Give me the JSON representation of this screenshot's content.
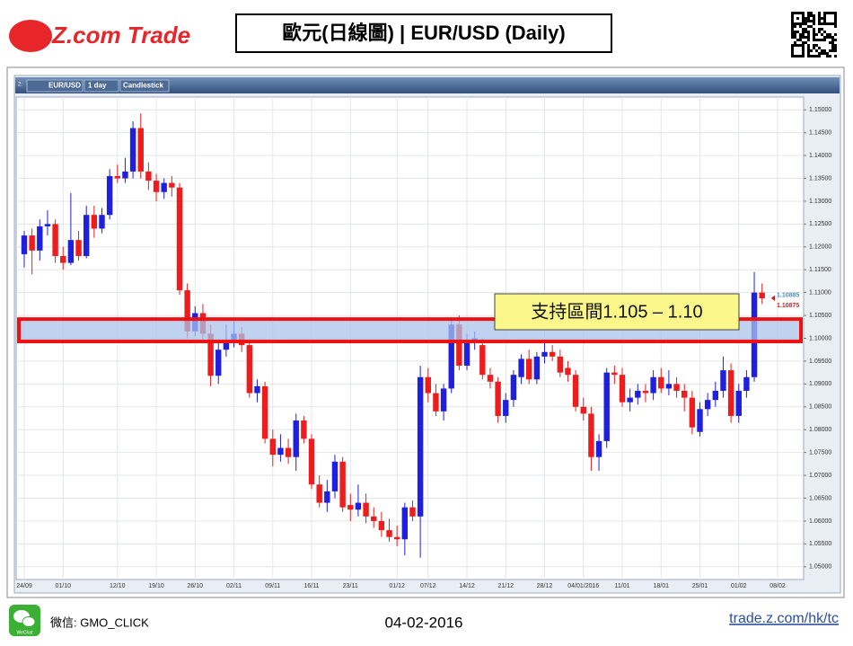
{
  "header": {
    "logo": "Z.com Trade",
    "title": "歐元(日線圖) | EUR/USD (Daily)"
  },
  "toolbar": {
    "index": "2:",
    "symbol": "EUR/USD",
    "period": "1 day",
    "style": "Candlestick"
  },
  "chart_data": {
    "type": "candlestick",
    "up_color": "#1f1fe0",
    "down_color": "#ee1c1c",
    "grid": true,
    "ylim": [
      1.0472,
      1.1528
    ],
    "yticks": [
      {
        "value": 1.05,
        "label": "1.05000"
      },
      {
        "value": 1.055,
        "label": "1.05500"
      },
      {
        "value": 1.06,
        "label": "1.06000"
      },
      {
        "value": 1.065,
        "label": "1.06500"
      },
      {
        "value": 1.07,
        "label": "1.07000"
      },
      {
        "value": 1.075,
        "label": "1.07500"
      },
      {
        "value": 1.08,
        "label": "1.08000"
      },
      {
        "value": 1.085,
        "label": "1.08500"
      },
      {
        "value": 1.09,
        "label": "1.09000"
      },
      {
        "value": 1.095,
        "label": "1.09500"
      },
      {
        "value": 1.1,
        "label": "1.10000"
      },
      {
        "value": 1.105,
        "label": "1.10500"
      },
      {
        "value": 1.11,
        "label": "1.11000"
      },
      {
        "value": 1.115,
        "label": "1.11500"
      },
      {
        "value": 1.12,
        "label": "1.12000"
      },
      {
        "value": 1.125,
        "label": "1.12500"
      },
      {
        "value": 1.13,
        "label": "1.13000"
      },
      {
        "value": 1.135,
        "label": "1.13500"
      },
      {
        "value": 1.14,
        "label": "1.14000"
      },
      {
        "value": 1.145,
        "label": "1.14500"
      },
      {
        "value": 1.15,
        "label": "1.15000"
      }
    ],
    "categories": [
      "24/09",
      null,
      null,
      null,
      null,
      "01/10",
      null,
      null,
      null,
      null,
      null,
      null,
      "12/10",
      null,
      null,
      null,
      null,
      "19/10",
      null,
      null,
      null,
      null,
      "26/10",
      null,
      null,
      null,
      null,
      "02/11",
      null,
      null,
      null,
      null,
      "09/11",
      null,
      null,
      null,
      null,
      "16/11",
      null,
      null,
      null,
      null,
      "23/11",
      null,
      null,
      null,
      null,
      null,
      "01/12",
      null,
      null,
      null,
      "07/12",
      null,
      null,
      null,
      null,
      "14/12",
      null,
      null,
      null,
      null,
      "21/12",
      null,
      null,
      null,
      null,
      "28/12",
      null,
      null,
      null,
      null,
      "04/01/2016",
      null,
      null,
      null,
      null,
      "11/01",
      null,
      null,
      null,
      null,
      "18/01",
      null,
      null,
      null,
      null,
      "25/01",
      null,
      null,
      null,
      null,
      "01/02",
      null,
      null,
      null,
      null,
      "08/02"
    ],
    "open": [
      1.1184,
      1.1225,
      1.1192,
      1.1245,
      1.125,
      1.118,
      1.1165,
      1.1215,
      1.118,
      1.127,
      1.124,
      1.127,
      1.1355,
      1.135,
      1.1365,
      1.146,
      1.1365,
      1.1345,
      1.132,
      1.134,
      1.133,
      1.1105,
      1.1015,
      1.1055,
      1.101,
      1.0918,
      1.0975,
      1.0995,
      1.101,
      1.0985,
      1.088,
      1.0895,
      1.078,
      1.0745,
      1.076,
      1.074,
      1.082,
      1.078,
      1.068,
      1.064,
      1.0665,
      1.073,
      1.0635,
      1.0625,
      1.064,
      1.061,
      1.06,
      1.058,
      1.0565,
      1.056,
      1.063,
      1.061,
      1.0915,
      1.088,
      1.084,
      1.089,
      1.103,
      1.094,
      1.099,
      1.0985,
      1.092,
      1.0905,
      1.083,
      1.0865,
      1.0915,
      1.0955,
      1.091,
      1.096,
      1.097,
      1.096,
      1.0935,
      1.092,
      1.085,
      1.0835,
      1.074,
      1.0775,
      1.0925,
      1.092,
      1.086,
      1.087,
      1.0885,
      1.088,
      1.0915,
      1.089,
      1.09,
      1.0885,
      1.087,
      1.0795,
      1.0845,
      1.0865,
      1.0885,
      1.093,
      1.083,
      1.0885,
      1.0915,
      1.11,
      null,
      null
    ],
    "high": [
      1.1235,
      1.124,
      1.126,
      1.128,
      1.126,
      1.12,
      1.1318,
      1.1235,
      1.129,
      1.129,
      1.1285,
      1.137,
      1.138,
      1.1395,
      1.1475,
      1.1492,
      1.1385,
      1.136,
      1.135,
      1.1355,
      1.134,
      1.112,
      1.107,
      1.1075,
      1.103,
      1.099,
      1.103,
      1.104,
      1.1025,
      1.0995,
      1.091,
      1.0905,
      1.08,
      1.079,
      1.078,
      1.0835,
      1.083,
      1.079,
      1.07,
      1.069,
      1.0745,
      1.074,
      1.066,
      1.068,
      1.066,
      1.063,
      1.062,
      1.0605,
      1.059,
      1.064,
      1.0645,
      1.094,
      1.0935,
      1.09,
      1.09,
      1.104,
      1.105,
      1.101,
      1.1015,
      1.1,
      1.0935,
      1.0915,
      1.088,
      1.093,
      1.0965,
      1.0975,
      1.097,
      1.099,
      1.0985,
      1.0975,
      1.095,
      1.093,
      1.087,
      1.085,
      1.079,
      1.0935,
      1.094,
      1.0935,
      1.089,
      1.09,
      1.09,
      1.093,
      1.0935,
      1.093,
      1.0915,
      1.09,
      1.0885,
      1.086,
      1.088,
      1.0905,
      1.096,
      1.0945,
      1.09,
      1.093,
      1.1145,
      1.112,
      null,
      null
    ],
    "low": [
      1.1155,
      1.114,
      1.117,
      1.1225,
      1.1165,
      1.115,
      1.116,
      1.117,
      1.1175,
      1.122,
      1.123,
      1.126,
      1.134,
      1.134,
      1.135,
      1.135,
      1.1325,
      1.13,
      1.1305,
      1.131,
      1.1095,
      1.1,
      1.1005,
      1.099,
      1.0895,
      1.09,
      1.096,
      1.098,
      1.097,
      1.087,
      1.086,
      1.077,
      1.072,
      1.073,
      1.0725,
      1.071,
      1.077,
      1.067,
      1.063,
      1.062,
      1.065,
      1.062,
      1.06,
      1.061,
      1.0595,
      1.0585,
      1.0565,
      1.0555,
      1.0545,
      1.0525,
      1.06,
      1.052,
      1.086,
      1.083,
      1.082,
      1.088,
      1.093,
      1.093,
      1.0975,
      1.091,
      1.089,
      1.0815,
      1.0815,
      1.085,
      1.09,
      1.09,
      1.09,
      1.0945,
      1.095,
      1.0915,
      1.0905,
      1.084,
      1.082,
      1.071,
      1.071,
      1.076,
      1.09,
      1.085,
      1.084,
      1.0855,
      1.086,
      1.0865,
      1.088,
      1.0875,
      1.087,
      1.084,
      1.079,
      1.0785,
      1.083,
      1.085,
      1.087,
      1.0815,
      1.0815,
      1.087,
      1.0905,
      1.1075,
      null,
      null
    ],
    "close": [
      1.1225,
      1.1192,
      1.1245,
      1.125,
      1.118,
      1.1165,
      1.1215,
      1.118,
      1.127,
      1.124,
      1.127,
      1.1355,
      1.135,
      1.1365,
      1.146,
      1.1365,
      1.1345,
      1.132,
      1.134,
      1.133,
      1.1105,
      1.1015,
      1.1055,
      1.101,
      1.0918,
      1.0975,
      1.0995,
      1.101,
      1.0985,
      1.088,
      1.0895,
      1.078,
      1.0745,
      1.076,
      1.074,
      1.082,
      1.078,
      1.068,
      1.064,
      1.0665,
      1.073,
      1.063,
      1.0625,
      1.064,
      1.061,
      1.06,
      1.058,
      1.0565,
      1.056,
      1.063,
      1.061,
      1.0915,
      1.088,
      1.084,
      1.089,
      1.103,
      1.094,
      1.099,
      1.1,
      1.092,
      1.0905,
      1.083,
      1.0865,
      1.092,
      1.0955,
      1.091,
      1.096,
      1.097,
      1.096,
      1.0925,
      1.092,
      1.085,
      1.0835,
      1.074,
      1.0775,
      1.0925,
      1.092,
      1.086,
      1.087,
      1.0885,
      1.088,
      1.0915,
      1.089,
      1.09,
      1.0885,
      1.087,
      1.0805,
      1.0845,
      1.0865,
      1.0885,
      1.093,
      1.083,
      1.0885,
      1.0915,
      1.11,
      1.10875,
      null,
      null
    ],
    "price_markers": [
      {
        "value": 1.10885,
        "color": "#2a9bd8"
      },
      {
        "value": 1.10875,
        "color": "#e01a1a"
      }
    ],
    "support_zone": {
      "range": [
        1.0993,
        1.1042
      ],
      "fill": "#a9c3ea",
      "border": "#ee1111"
    },
    "annotation": {
      "text": "支持區間1.105 – 1.10"
    }
  },
  "footer": {
    "wechat_icon": "WeChat",
    "wechat": "微信: GMO_CLICK",
    "date": "04-02-2016",
    "link": "trade.z.com/hk/tc"
  }
}
